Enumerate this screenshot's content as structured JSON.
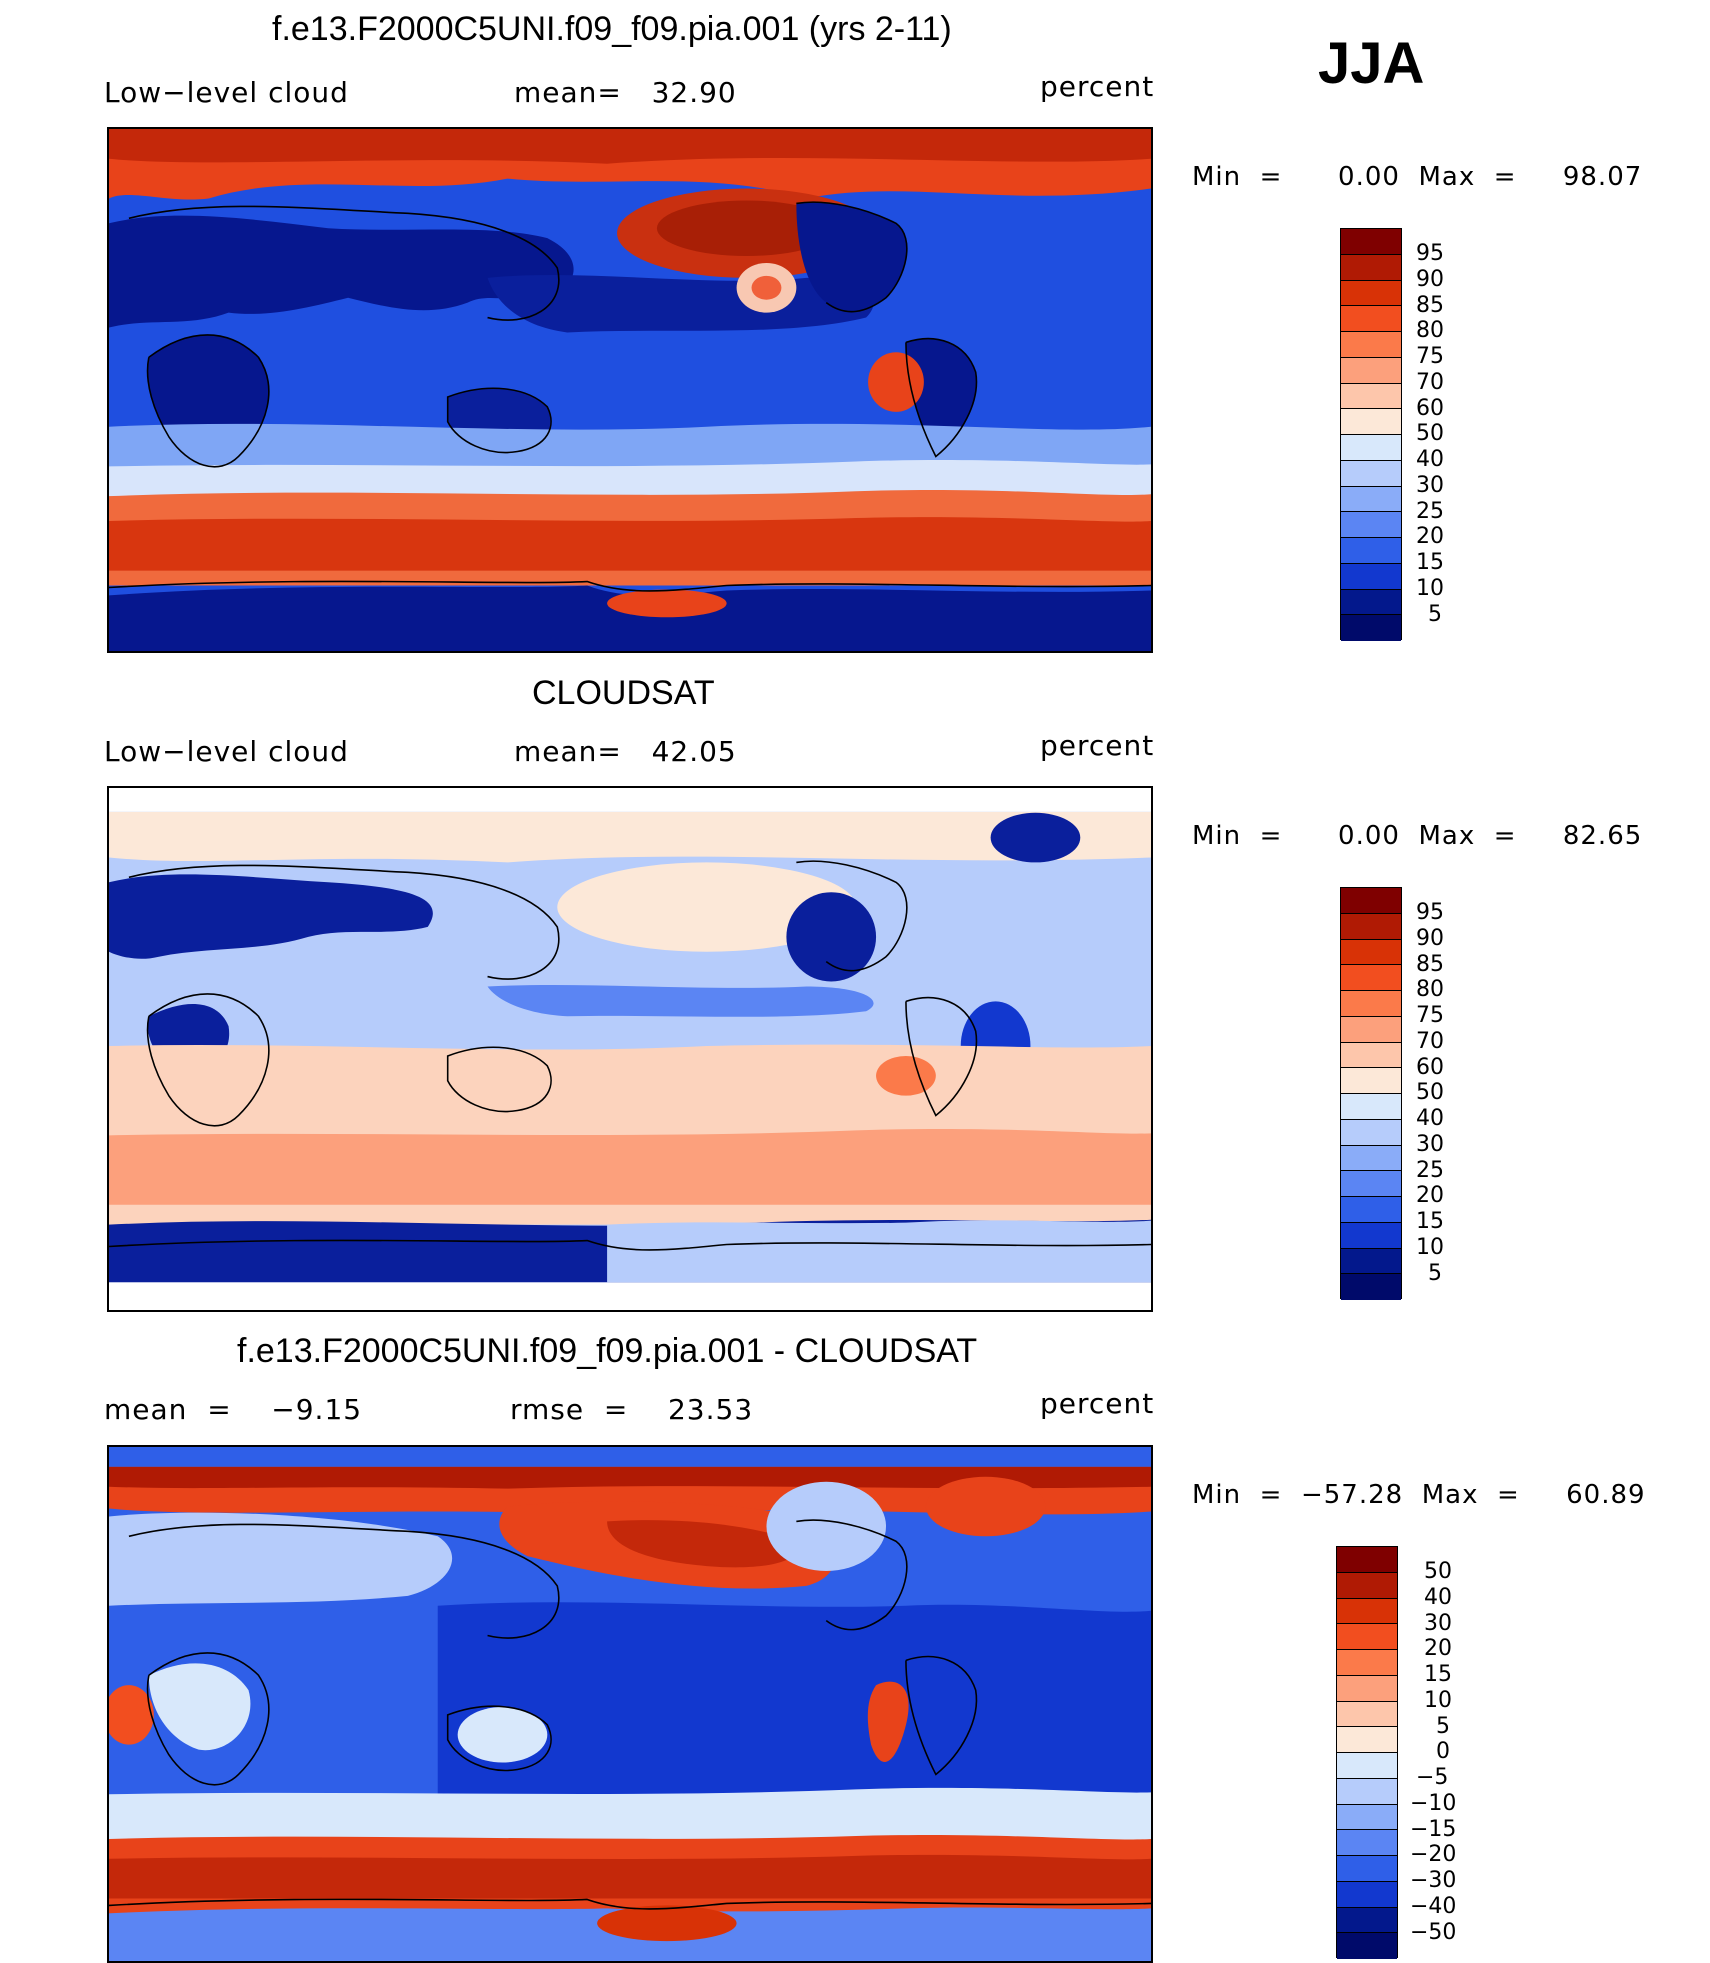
{
  "season": "JJA",
  "panels": [
    {
      "title": "f.e13.F2000C5UNI.f09_f09.pia.001 (yrs 2-11)",
      "left_label": "Low−level cloud",
      "center_label": "mean=   32.90",
      "units": "percent",
      "range_label": "Min  =      0.00  Max  =     98.07",
      "colorbar": {
        "levels": [
          "95",
          "90",
          "85",
          "80",
          "75",
          "70",
          "60",
          "50",
          "40",
          "30",
          "25",
          "20",
          "15",
          "10",
          "5"
        ],
        "colors": [
          "#7f0000",
          "#b01a04",
          "#d83206",
          "#f24e1f",
          "#fb7a4a",
          "#fca07c",
          "#fdc6ab",
          "#fce8d8",
          "#d8e8fb",
          "#b6ccfb",
          "#8aacf8",
          "#5b85f3",
          "#2f5fe8",
          "#1238cf",
          "#03188c",
          "#000a6a"
        ]
      },
      "map_palette": [
        "deep_blue",
        "blue",
        "light_blue",
        "cream",
        "orange",
        "red"
      ]
    },
    {
      "title": "CLOUDSAT",
      "left_label": "Low−level cloud",
      "center_label": "mean=   42.05",
      "units": "percent",
      "range_label": "Min  =      0.00  Max  =     82.65",
      "colorbar": {
        "levels": [
          "95",
          "90",
          "85",
          "80",
          "75",
          "70",
          "60",
          "50",
          "40",
          "30",
          "25",
          "20",
          "15",
          "10",
          "5"
        ],
        "colors": [
          "#7f0000",
          "#b01a04",
          "#d83206",
          "#f24e1f",
          "#fb7a4a",
          "#fca07c",
          "#fdc6ab",
          "#fce8d8",
          "#d8e8fb",
          "#b6ccfb",
          "#8aacf8",
          "#5b85f3",
          "#2f5fe8",
          "#1238cf",
          "#03188c",
          "#000a6a"
        ]
      }
    },
    {
      "title": "f.e13.F2000C5UNI.f09_f09.pia.001 - CLOUDSAT",
      "left_label": "mean  =    −9.15",
      "center_label": "rmse  =    23.53",
      "units": "percent",
      "range_label": "Min  =  −57.28  Max  =     60.89",
      "colorbar": {
        "levels": [
          "50",
          "40",
          "30",
          "20",
          "15",
          "10",
          "5",
          "0",
          "−5",
          "−10",
          "−15",
          "−20",
          "−30",
          "−40",
          "−50"
        ],
        "colors": [
          "#7f0000",
          "#b01a04",
          "#d83206",
          "#f24e1f",
          "#fb7a4a",
          "#fca07c",
          "#fdc6ab",
          "#fce8d8",
          "#d8e8fb",
          "#b6ccfb",
          "#8aacf8",
          "#5b85f3",
          "#2f5fe8",
          "#1238cf",
          "#03188c",
          "#000a6a"
        ]
      }
    }
  ]
}
